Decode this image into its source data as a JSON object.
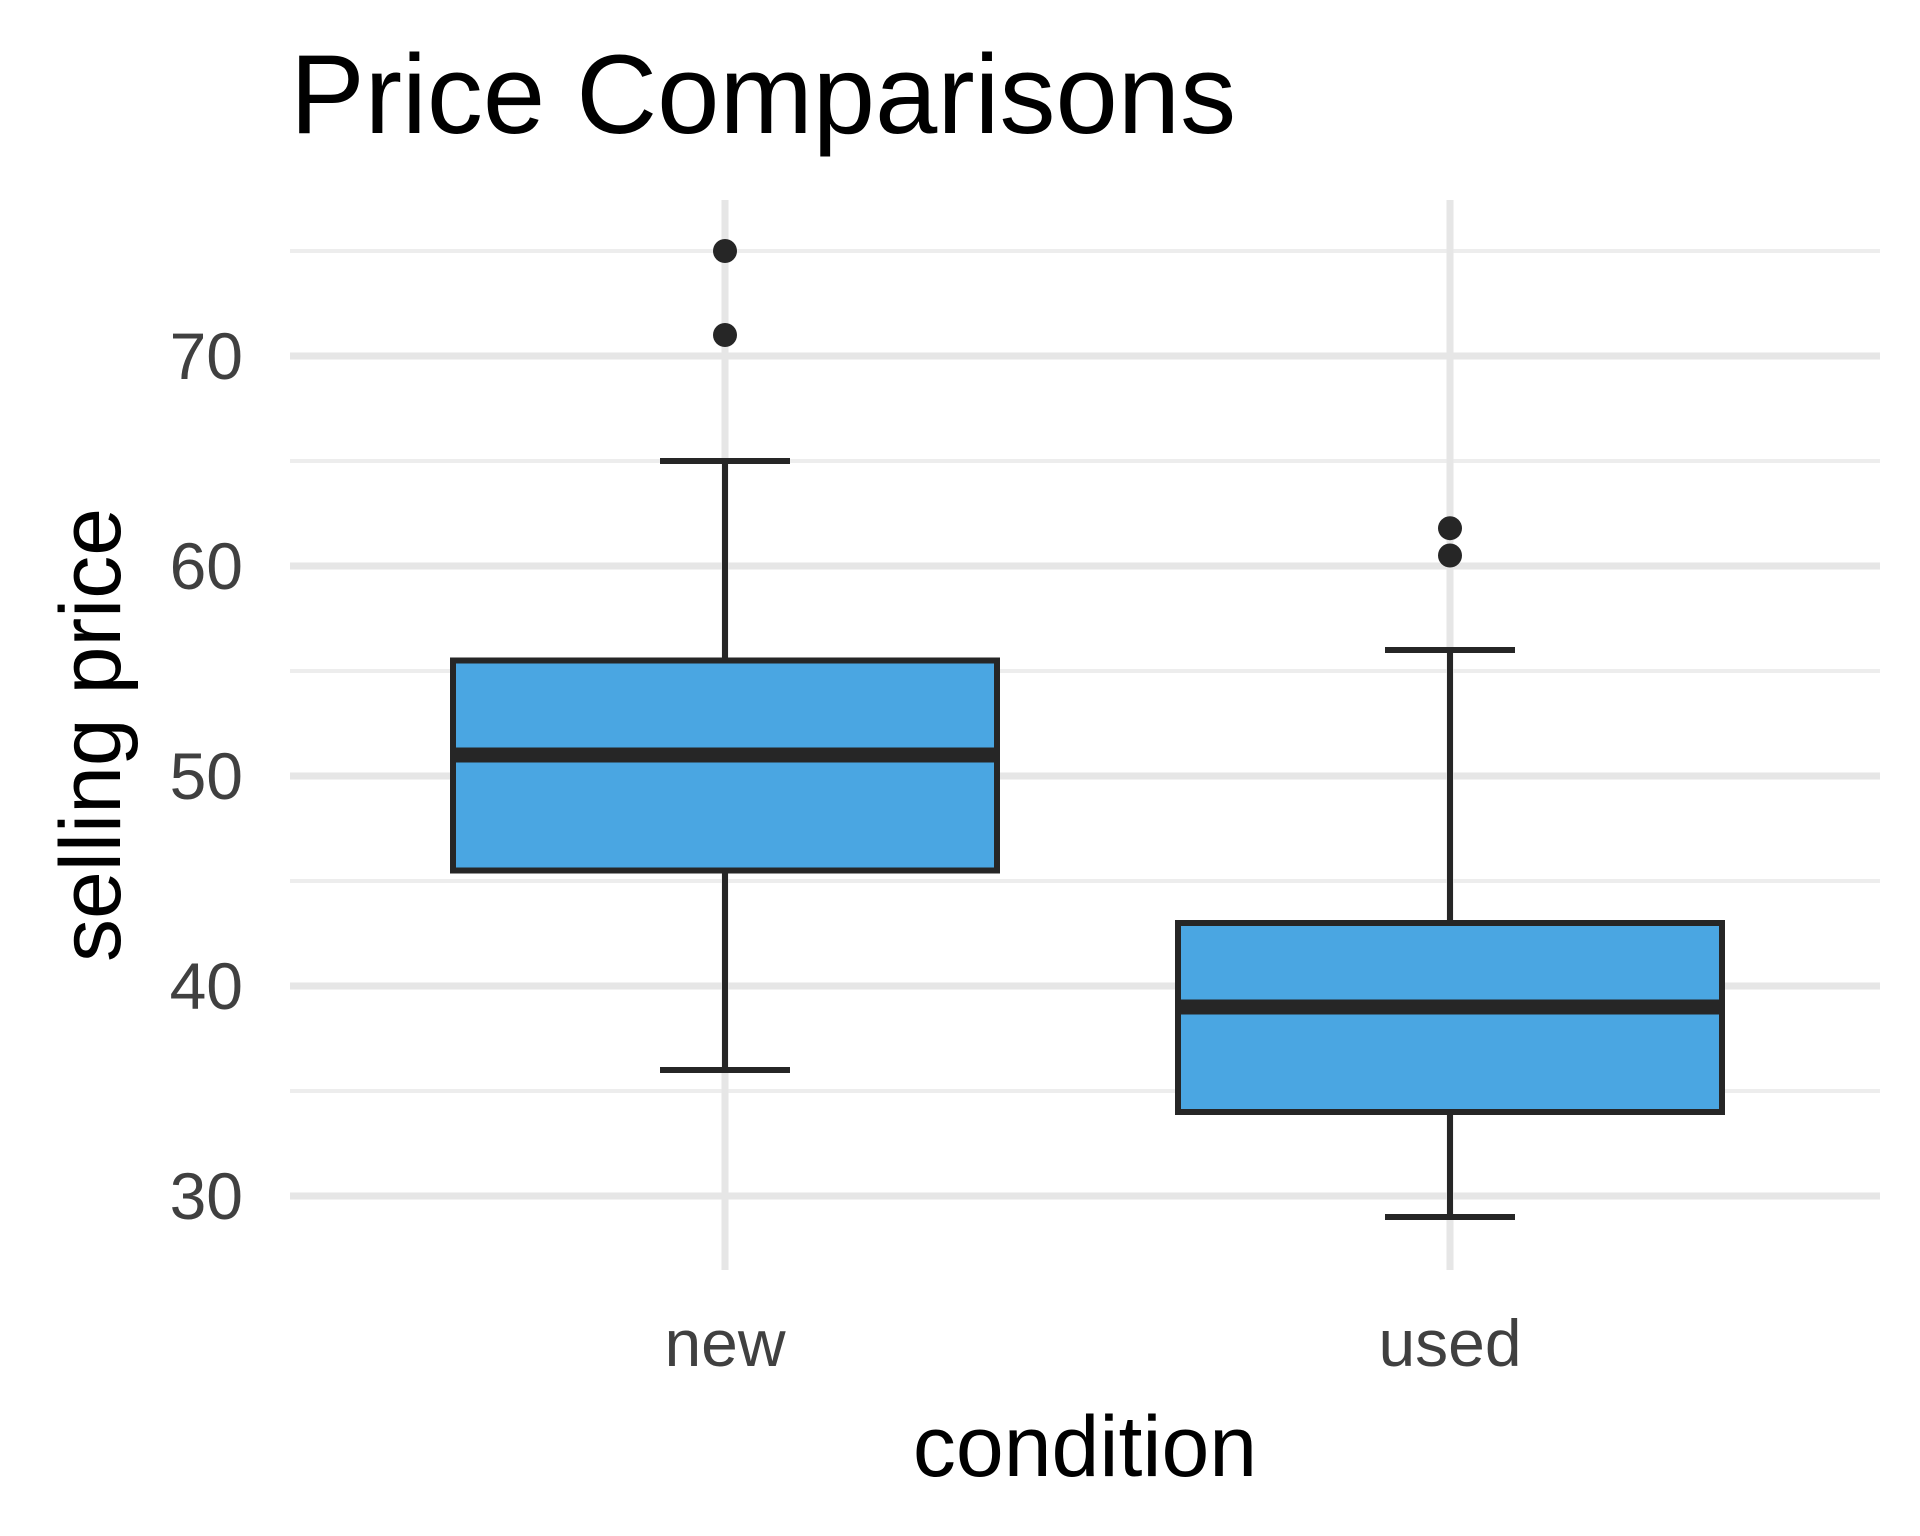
{
  "chart_data": {
    "type": "boxplot",
    "title": "Price Comparisons",
    "xlabel": "condition",
    "ylabel": "selling price",
    "categories": [
      "new",
      "used"
    ],
    "boxes": [
      {
        "category": "new",
        "whisker_low": 36,
        "q1": 45.5,
        "median": 51,
        "q3": 55.5,
        "whisker_high": 65,
        "outliers": [
          71,
          75
        ]
      },
      {
        "category": "used",
        "whisker_low": 29,
        "q1": 34,
        "median": 39,
        "q3": 43,
        "whisker_high": 56,
        "outliers": [
          60.5,
          61.8
        ]
      }
    ],
    "yticks": [
      30,
      40,
      50,
      60,
      70
    ],
    "ylim": [
      26.5,
      77.5
    ],
    "grid": true,
    "legend": "none",
    "colors": {
      "box_fill": "#4AA6E2",
      "box_stroke": "#262626",
      "grid_major": "#E6E6E6",
      "grid_minor": "#EDEDED",
      "tick_text": "#404040",
      "title": "#000000"
    }
  }
}
